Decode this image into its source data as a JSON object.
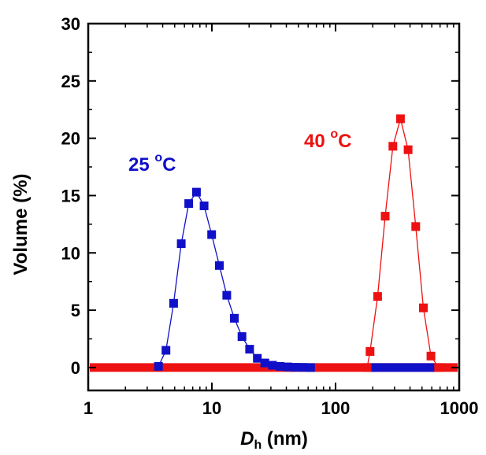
{
  "chart_data": {
    "type": "scatter",
    "xscale": "log",
    "xlim": [
      1,
      1000
    ],
    "ylim": [
      -2,
      30
    ],
    "x_ticks": [
      1,
      10,
      100,
      1000
    ],
    "x_tick_labels": [
      "1",
      "10",
      "100",
      "1000"
    ],
    "y_ticks": [
      0,
      5,
      10,
      15,
      20,
      25,
      30
    ],
    "y_tick_labels": [
      "0",
      "5",
      "10",
      "15",
      "20",
      "25",
      "30"
    ],
    "xlabel_main": "D",
    "xlabel_sub": "h",
    "xlabel_unit": " (nm)",
    "ylabel": "Volume (%)",
    "grid": false,
    "legend": "none",
    "series": [
      {
        "color": "#1010c8",
        "annotation": "25 °C",
        "x": [
          3.7,
          4.25,
          4.9,
          5.65,
          6.5,
          7.5,
          8.65,
          9.95,
          11.5,
          13.2,
          15.2,
          17.5,
          20.2,
          23.3,
          26.8,
          30.9,
          35.6,
          41.0,
          47.3,
          54.5,
          62.8
        ],
        "y": [
          0.1,
          1.5,
          5.6,
          10.8,
          14.3,
          15.3,
          14.1,
          11.6,
          8.9,
          6.3,
          4.3,
          2.7,
          1.6,
          0.8,
          0.4,
          0.2,
          0.1,
          0.05,
          0.02,
          0.01,
          0.0
        ]
      },
      {
        "color": "#ee1111",
        "annotation": "40 °C",
        "x": [
          180,
          190,
          219,
          252,
          291,
          335,
          386,
          445,
          513,
          591,
          681
        ],
        "y": [
          0.0,
          1.4,
          6.2,
          13.2,
          19.3,
          21.7,
          19.0,
          12.3,
          5.2,
          1.0,
          0.0
        ]
      }
    ]
  }
}
